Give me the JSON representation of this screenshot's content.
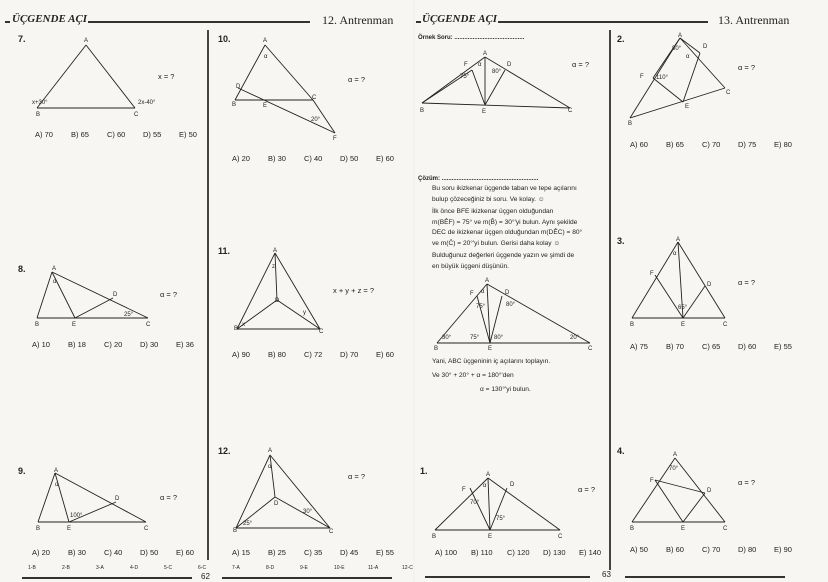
{
  "left_page": {
    "header_title": "ÜÇGENDE AÇI",
    "header_section": "12. Antrenman",
    "page_number": "62",
    "answer_key": [
      "1-B",
      "2-B",
      "3-A",
      "4-D",
      "5-C",
      "6-C",
      "7-A",
      "8-D",
      "9-E",
      "10-E",
      "11-A",
      "12-C"
    ]
  },
  "right_page": {
    "header_title": "ÜÇGENDE AÇI",
    "header_section": "13. Antrenman",
    "page_number": "63",
    "example_label": "Örnek Soru: ..........................................",
    "solution_label": "Çözüm: ..........................................................",
    "solution_lines": [
      "Bu soru ikizkenar üçgende taban ve tepe açılarını",
      "bulup çözeceğiniz bi soru. Ve kolay. ☺",
      "İlk önce BFE ikizkenar üçgen olduğundan",
      "m(BÊF) = 75° ve m(B̂) = 30°'yi bulun. Aynı şekilde",
      "DEC de ikizkenar üçgen olduğundan m(DÊC) = 80°",
      "ve m(Ĉ) = 20°'yi bulun. Gerisi daha kolay ☺",
      "Bulduğunuz değerleri üçgende yazın ve şimdi de",
      "en büyük üçgeni düşünün."
    ],
    "conclusion_lines": [
      "Yani, ABC üçgeninin iç açılarını toplayın.",
      "Ve 30° + 20° + α = 180°'den",
      "α = 130°'yi bulun."
    ]
  },
  "questions": {
    "q7": {
      "number": "7.",
      "ask": "x = ?",
      "labels": [
        "A",
        "B",
        "C",
        "x+30°",
        "2x-40°"
      ],
      "options": [
        "A) 70",
        "B) 65",
        "C) 60",
        "D) 55",
        "E) 50"
      ]
    },
    "q10": {
      "number": "10.",
      "ask": "α = ?",
      "labels": [
        "A",
        "α",
        "B",
        "D",
        "E",
        "C",
        "20°",
        "F"
      ],
      "options": [
        "A) 20",
        "B) 30",
        "C) 40",
        "D) 50",
        "E) 60"
      ]
    },
    "q8": {
      "number": "8.",
      "ask": "α = ?",
      "labels": [
        "A",
        "α",
        "B",
        "E",
        "C",
        "D",
        "25°"
      ],
      "options": [
        "A) 10",
        "B) 18",
        "C) 20",
        "D) 30",
        "E) 36"
      ]
    },
    "q11": {
      "number": "11.",
      "ask": "x + y + z = ?",
      "labels": [
        "A",
        "z",
        "B",
        "x",
        "C",
        "y",
        "D"
      ],
      "options": [
        "A) 90",
        "B) 80",
        "C) 72",
        "D) 70",
        "E) 60"
      ]
    },
    "q9": {
      "number": "9.",
      "ask": "α = ?",
      "labels": [
        "A",
        "α",
        "B",
        "E",
        "C",
        "D",
        "100°"
      ],
      "options": [
        "A) 20",
        "B) 30",
        "C) 40",
        "D) 50",
        "E) 60"
      ]
    },
    "q12": {
      "number": "12.",
      "ask": "α = ?",
      "labels": [
        "A",
        "α",
        "B",
        "25°",
        "C",
        "D",
        "30°"
      ],
      "options": [
        "A) 15",
        "B) 25",
        "C) 35",
        "D) 45",
        "E) 55"
      ]
    },
    "ex": {
      "number": "",
      "ask": "α = ?",
      "labels": [
        "A",
        "α",
        "F",
        "D",
        "75°",
        "80°",
        "B",
        "E",
        "C"
      ],
      "options": []
    },
    "ex2": {
      "number": "",
      "ask": "",
      "labels": [
        "A",
        "α",
        "F",
        "D",
        "75°",
        "80°",
        "B",
        "E",
        "C",
        "30°",
        "75°",
        "80°",
        "20°"
      ],
      "options": []
    },
    "q1": {
      "number": "1.",
      "ask": "α = ?",
      "labels": [
        "A",
        "α",
        "F",
        "D",
        "70°",
        "75°",
        "B",
        "E",
        "C"
      ],
      "options": [
        "A) 100",
        "B) 110",
        "C) 120",
        "D) 130",
        "E) 140"
      ]
    },
    "q2": {
      "number": "2.",
      "ask": "α = ?",
      "labels": [
        "A",
        "80°",
        "α",
        "D",
        "F",
        "110°",
        "C",
        "E",
        "B"
      ],
      "options": [
        "A) 60",
        "B) 65",
        "C) 70",
        "D) 75",
        "E) 80"
      ]
    },
    "q3": {
      "number": "3.",
      "ask": "α = ?",
      "labels": [
        "A",
        "α",
        "F",
        "D",
        "65°",
        "B",
        "E",
        "C"
      ],
      "options": [
        "A) 75",
        "B) 70",
        "C) 65",
        "D) 60",
        "E) 55"
      ]
    },
    "q4": {
      "number": "4.",
      "ask": "α = ?",
      "labels": [
        "A",
        "70°",
        "F",
        "D",
        "B",
        "E",
        "C"
      ],
      "options": [
        "A) 50",
        "B) 60",
        "C) 70",
        "D) 80",
        "E) 90"
      ]
    }
  }
}
